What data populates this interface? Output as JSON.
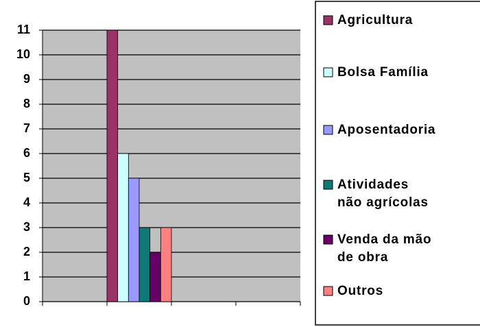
{
  "chart_data": {
    "type": "bar",
    "categories": [
      null,
      null,
      null,
      null
    ],
    "series": [
      {
        "name": "Agricultura",
        "color": "#993366",
        "values": [
          null,
          11,
          null,
          null
        ]
      },
      {
        "name": "Bolsa Família",
        "color": "#ccffff",
        "values": [
          null,
          6,
          null,
          null
        ]
      },
      {
        "name": "Aposentadoria",
        "color": "#9999ff",
        "values": [
          null,
          5,
          null,
          null
        ]
      },
      {
        "name": "Atividades não agrícolas",
        "color": "#0f7a75",
        "values": [
          null,
          3,
          null,
          null
        ]
      },
      {
        "name": "Venda da mão de obra",
        "color": "#660066",
        "values": [
          null,
          2,
          null,
          null
        ]
      },
      {
        "name": "Outros",
        "color": "#ff8080",
        "values": [
          null,
          3,
          null,
          null
        ]
      }
    ],
    "ylim": [
      0,
      11
    ],
    "yticks": [
      0,
      1,
      2,
      3,
      4,
      5,
      6,
      7,
      8,
      9,
      10,
      11
    ],
    "grid": true,
    "legend": "right"
  }
}
